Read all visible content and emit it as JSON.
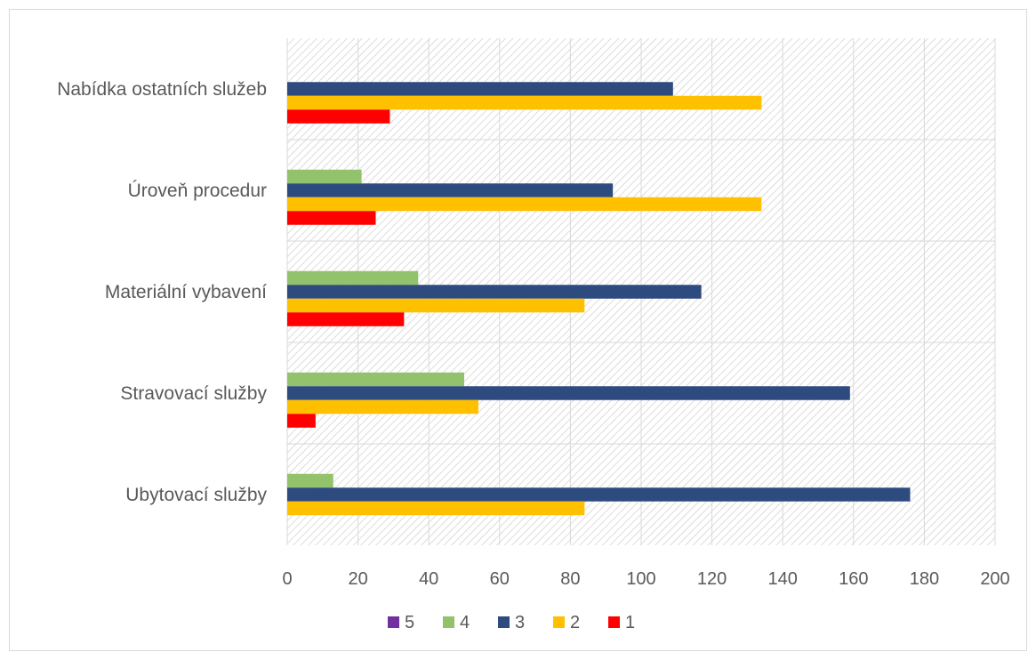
{
  "chart_data": {
    "type": "bar",
    "orientation": "horizontal",
    "categories": [
      "Nabídka ostatních služeb",
      "Úroveň procedur",
      "Materiální vybavení",
      "Stravovací služby",
      "Ubytovací služby"
    ],
    "series": [
      {
        "name": "5",
        "color": "#7030a0",
        "values": [
          0,
          0,
          0,
          0,
          0
        ]
      },
      {
        "name": "4",
        "color": "#92c36c",
        "values": [
          0,
          21,
          37,
          50,
          13
        ]
      },
      {
        "name": "3",
        "color": "#2e4b7f",
        "values": [
          109,
          92,
          117,
          159,
          176
        ]
      },
      {
        "name": "2",
        "color": "#ffc000",
        "values": [
          134,
          134,
          84,
          54,
          84
        ]
      },
      {
        "name": "1",
        "color": "#ff0000",
        "values": [
          29,
          25,
          33,
          8,
          0
        ]
      }
    ],
    "xlim": [
      0,
      200
    ],
    "xticks": [
      "0",
      "20",
      "40",
      "60",
      "80",
      "100",
      "120",
      "140",
      "160",
      "180",
      "200"
    ],
    "grid": true,
    "legend": "bottom",
    "title": "",
    "xlabel": "",
    "ylabel": ""
  }
}
